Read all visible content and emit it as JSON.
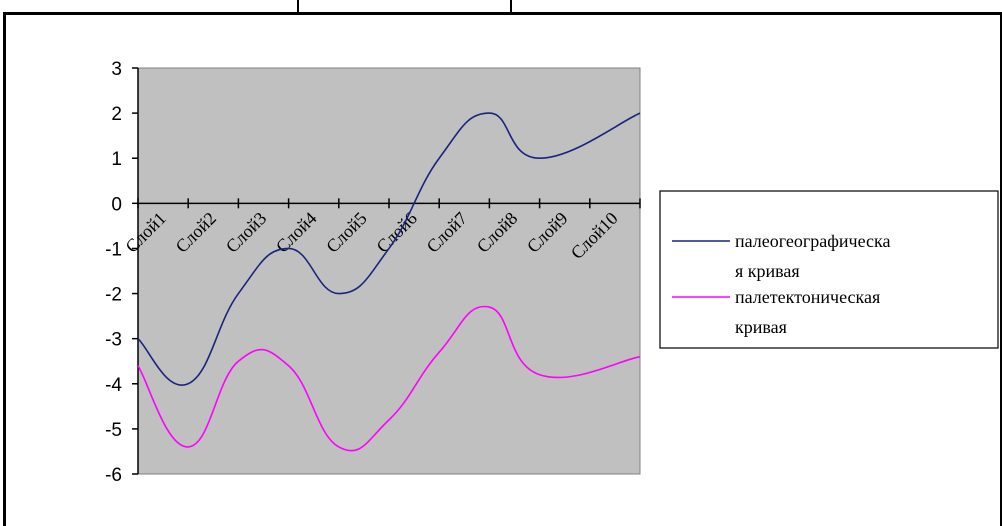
{
  "chart_data": {
    "type": "line",
    "categories": [
      "Слой1",
      "Слой2",
      "Слой3",
      "Слой4",
      "Слой5",
      "Слой6",
      "Слой7",
      "Слой8",
      "Слой9",
      "Слой10"
    ],
    "ylim": [
      -6,
      3
    ],
    "yticks": [
      "3",
      "2",
      "1",
      "0",
      "-1",
      "-2",
      "-3",
      "-4",
      "-5",
      "-6"
    ],
    "plot_background": "#c0c0c0",
    "grid": false,
    "legend_position": "right",
    "series": [
      {
        "name_lines": [
          "палеогеографическа",
          "я кривая"
        ],
        "color": "#1a237e",
        "values": [
          -3,
          -4,
          -2,
          -1,
          -2,
          -1,
          1,
          2,
          1,
          2
        ]
      },
      {
        "name_lines": [
          "палетектоническая",
          "кривая"
        ],
        "color": "#ff00ff",
        "values": [
          -3.6,
          -5.4,
          -3.5,
          -3.6,
          -5.4,
          -4.8,
          -3.3,
          -2.3,
          -3.8,
          -3.4
        ]
      }
    ]
  }
}
